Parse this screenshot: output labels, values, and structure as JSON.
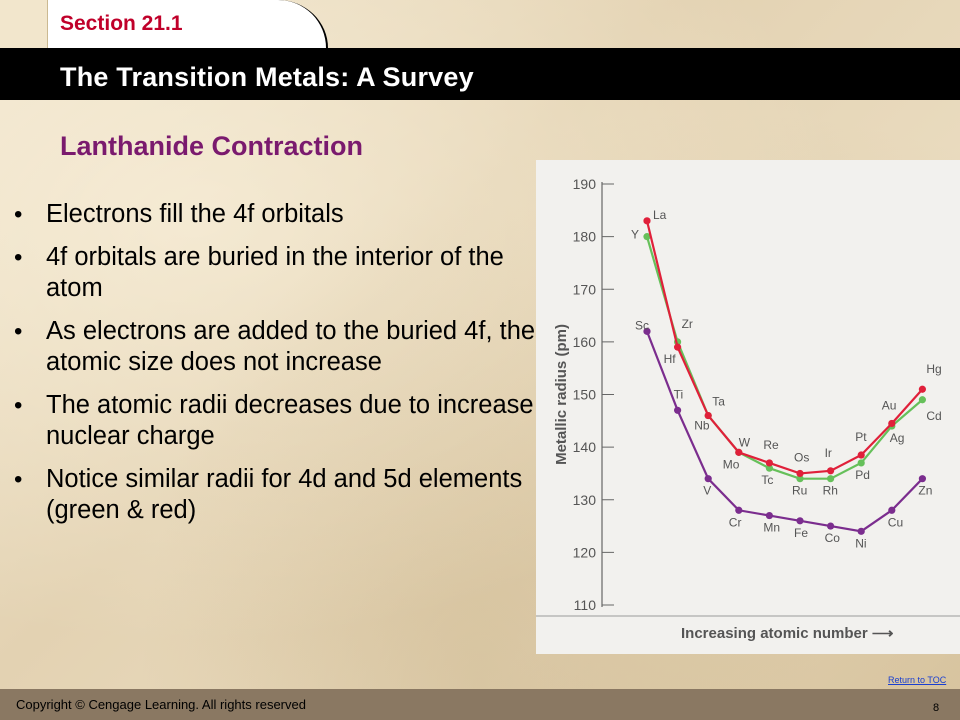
{
  "header": {
    "section": "Section 21.1",
    "title": "The Transition Metals: A Survey"
  },
  "slide": {
    "heading": "Lanthanide Contraction",
    "bullets": [
      "Electrons fill the 4f orbitals",
      "4f orbitals are buried in the interior of the atom",
      "As electrons are added to the buried 4f, the atomic size does not increase",
      "The atomic radii decreases due to increase nuclear charge",
      "Notice similar radii for 4d and 5d elements (green & red)"
    ],
    "bullet_symbol": "•"
  },
  "chart_data": {
    "type": "line",
    "ylabel": "Metallic radius (pm)",
    "xlabel": "Increasing atomic number  ⟶",
    "ylim": [
      110,
      190
    ],
    "yticks": [
      110,
      120,
      130,
      140,
      150,
      160,
      170,
      180,
      190
    ],
    "grid": false,
    "legend": "none",
    "series": [
      {
        "color": "#7b2d8e",
        "labels": [
          "Sc",
          "Ti",
          "V",
          "Cr",
          "Mn",
          "Fe",
          "Co",
          "Ni",
          "Cu",
          "Zn"
        ],
        "values": [
          162,
          147,
          134,
          128,
          127,
          126,
          125,
          124,
          128,
          134
        ]
      },
      {
        "color": "#66c05a",
        "labels": [
          "Y",
          "Zr",
          "Nb",
          "Mo",
          "Tc",
          "Ru",
          "Rh",
          "Pd",
          "Ag",
          "Cd"
        ],
        "values": [
          180,
          160,
          146,
          139,
          136,
          134,
          134,
          137,
          144,
          149
        ]
      },
      {
        "color": "#e0203a",
        "labels": [
          "La",
          "Hf",
          "Ta",
          "W",
          "Re",
          "Os",
          "Ir",
          "Pt",
          "Au",
          "Hg"
        ],
        "values": [
          183,
          159,
          146,
          139,
          137,
          135,
          135.5,
          138.5,
          144.5,
          151
        ]
      }
    ]
  },
  "footer": {
    "copyright": "Copyright © Cengage Learning. All rights reserved",
    "page": "8",
    "toc_link": "Return to TOC"
  },
  "colors": {
    "accent_red": "#c0002a",
    "heading_purple": "#7a1a6e",
    "header_black": "#000000"
  }
}
